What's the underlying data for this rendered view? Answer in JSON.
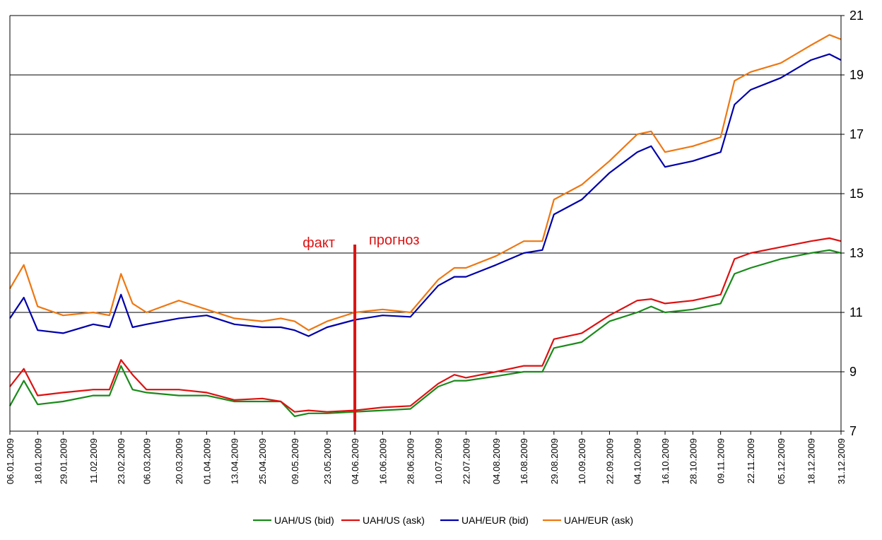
{
  "chart_data": {
    "type": "line",
    "title": "",
    "xlabel": "",
    "ylabel": "",
    "x_range": [
      "06.01.2009",
      "31.12.2009"
    ],
    "ylim": [
      7,
      21
    ],
    "y_ticks": [
      7,
      9,
      11,
      13,
      15,
      17,
      19,
      21
    ],
    "y_tick_labels": [
      "7",
      "9",
      "11",
      "13",
      "15",
      "17",
      "19",
      "21"
    ],
    "y_axis_side": "right",
    "grid": "horizontal",
    "legend_position": "bottom",
    "x_tick_labels": [
      "06.01.2009",
      "18.01.2009",
      "29.01.2009",
      "11.02.2009",
      "23.02.2009",
      "06.03.2009",
      "20.03.2009",
      "01.04.2009",
      "13.04.2009",
      "25.04.2009",
      "09.05.2009",
      "23.05.2009",
      "04.06.2009",
      "16.06.2009",
      "28.06.2009",
      "10.07.2009",
      "22.07.2009",
      "04.08.2009",
      "16.08.2009",
      "29.08.2009",
      "10.09.2009",
      "22.09.2009",
      "04.10.2009",
      "16.10.2009",
      "28.10.2009",
      "09.11.2009",
      "22.11.2009",
      "05.12.2009",
      "18.12.2009",
      "31.12.2009"
    ],
    "x": [
      "06.01.2009",
      "12.01.2009",
      "18.01.2009",
      "29.01.2009",
      "11.02.2009",
      "18.02.2009",
      "23.02.2009",
      "28.02.2009",
      "06.03.2009",
      "20.03.2009",
      "01.04.2009",
      "13.04.2009",
      "25.04.2009",
      "03.05.2009",
      "09.05.2009",
      "15.05.2009",
      "23.05.2009",
      "04.06.2009",
      "16.06.2009",
      "28.06.2009",
      "10.07.2009",
      "17.07.2009",
      "22.07.2009",
      "04.08.2009",
      "16.08.2009",
      "24.08.2009",
      "29.08.2009",
      "10.09.2009",
      "22.09.2009",
      "04.10.2009",
      "10.10.2009",
      "16.10.2009",
      "28.10.2009",
      "09.11.2009",
      "15.11.2009",
      "22.11.2009",
      "05.12.2009",
      "18.12.2009",
      "26.12.2009",
      "31.12.2009"
    ],
    "series": [
      {
        "name": "UAH/US (bid)",
        "color": "#1a8a1a",
        "values": [
          7.85,
          8.7,
          7.9,
          8.0,
          8.2,
          8.2,
          9.2,
          8.4,
          8.3,
          8.2,
          8.2,
          8.0,
          8.0,
          8.0,
          7.5,
          7.6,
          7.6,
          7.65,
          7.7,
          7.75,
          8.5,
          8.7,
          8.7,
          8.85,
          9.0,
          9.0,
          9.8,
          10.0,
          10.7,
          11.0,
          11.2,
          11.0,
          11.1,
          11.3,
          12.3,
          12.5,
          12.8,
          13.0,
          13.1,
          13.0
        ]
      },
      {
        "name": "UAH/US (ask)",
        "color": "#dd1111",
        "values": [
          8.5,
          9.1,
          8.2,
          8.3,
          8.4,
          8.4,
          9.4,
          8.9,
          8.4,
          8.4,
          8.3,
          8.05,
          8.1,
          8.0,
          7.65,
          7.7,
          7.65,
          7.7,
          7.8,
          7.85,
          8.6,
          8.9,
          8.8,
          9.0,
          9.2,
          9.2,
          10.1,
          10.3,
          10.9,
          11.4,
          11.45,
          11.3,
          11.4,
          11.6,
          12.8,
          13.0,
          13.2,
          13.4,
          13.5,
          13.4
        ]
      },
      {
        "name": "UAH/EUR (bid)",
        "color": "#0000aa",
        "values": [
          10.8,
          11.5,
          10.4,
          10.3,
          10.6,
          10.5,
          11.6,
          10.5,
          10.6,
          10.8,
          10.9,
          10.6,
          10.5,
          10.5,
          10.4,
          10.2,
          10.5,
          10.75,
          10.9,
          10.85,
          11.9,
          12.2,
          12.2,
          12.6,
          13.0,
          13.1,
          14.3,
          14.8,
          15.7,
          16.4,
          16.6,
          15.9,
          16.1,
          16.4,
          18.0,
          18.5,
          18.9,
          19.5,
          19.7,
          19.5
        ]
      },
      {
        "name": "UAH/EUR (ask)",
        "color": "#ee7711",
        "values": [
          11.8,
          12.6,
          11.2,
          10.9,
          11.0,
          10.9,
          12.3,
          11.3,
          11.0,
          11.4,
          11.1,
          10.8,
          10.7,
          10.8,
          10.7,
          10.4,
          10.7,
          11.0,
          11.1,
          11.0,
          12.1,
          12.5,
          12.5,
          12.9,
          13.4,
          13.4,
          14.8,
          15.3,
          16.1,
          17.0,
          17.1,
          16.4,
          16.6,
          16.9,
          18.8,
          19.1,
          19.4,
          20.0,
          20.35,
          20.2
        ]
      }
    ],
    "annotations": [
      {
        "text": "факт",
        "color": "#dd1111"
      },
      {
        "text": "прогноз",
        "color": "#dd1111"
      }
    ],
    "marker_date": "04.06.2009",
    "marker_color": "#dd1111"
  }
}
